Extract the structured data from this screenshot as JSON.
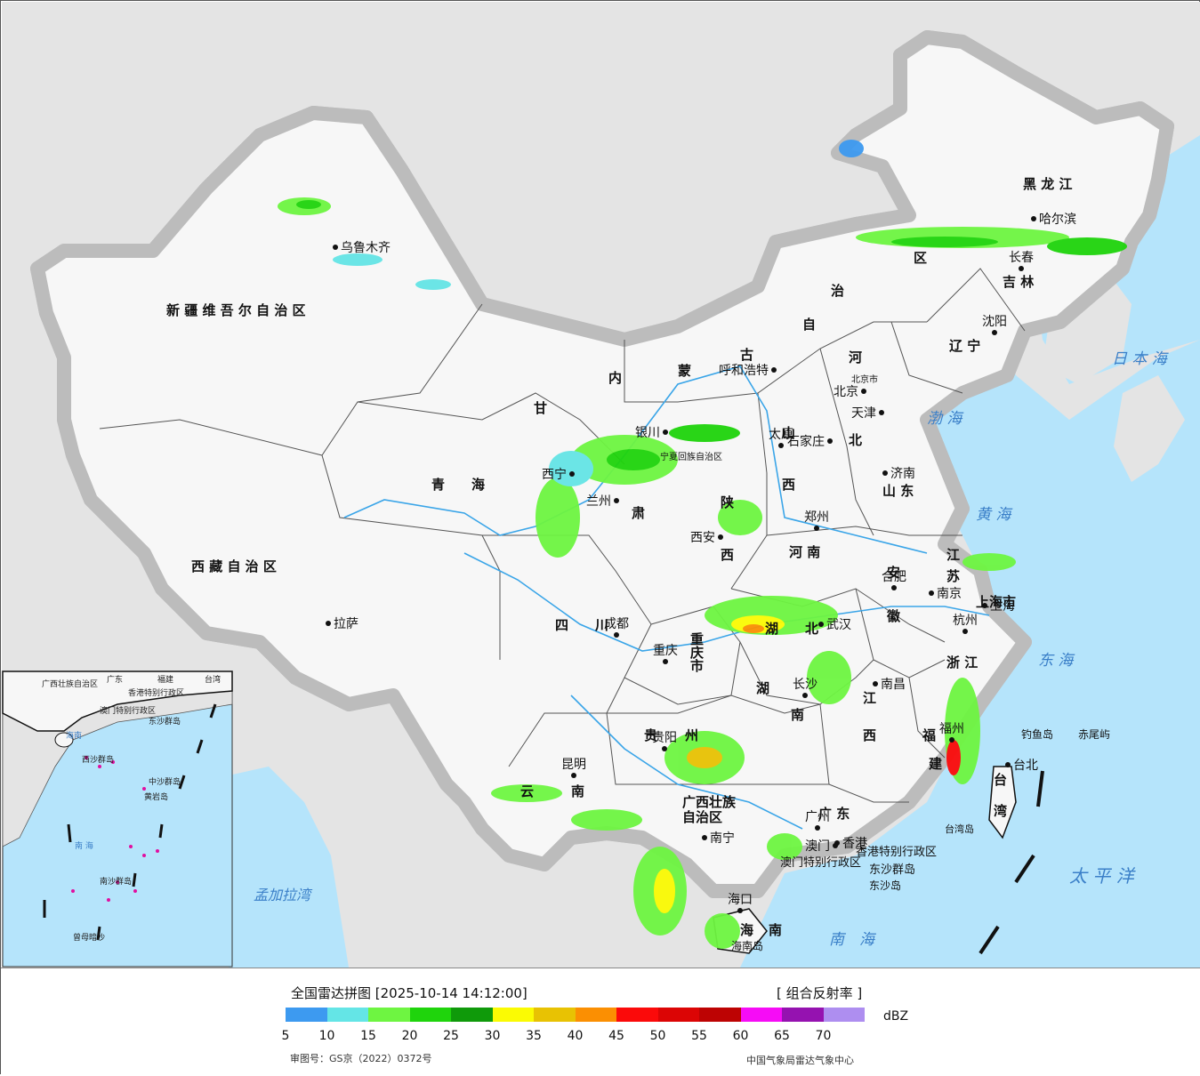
{
  "legend": {
    "title": "全国雷达拼图 [2025-10-14 14:12:00]",
    "product": "[ 组合反射率 ]",
    "unit": "dBZ",
    "colors": [
      "#3d9af0",
      "#64e5e6",
      "#6ef541",
      "#1fd40c",
      "#0f9a0a",
      "#fbfb03",
      "#e8c203",
      "#fb8f02",
      "#fb0a0a",
      "#dc0505",
      "#bd0303",
      "#f60cf6",
      "#9512b0",
      "#ae8ef0"
    ],
    "labels": [
      "5",
      "10",
      "15",
      "20",
      "25",
      "30",
      "35",
      "40",
      "45",
      "50",
      "55",
      "60",
      "65",
      "70"
    ],
    "approval": "审图号：GS京（2022）0372号",
    "organization": "中国气象局雷达气象中心"
  },
  "regions": [
    "新 疆 维 吾 尔 自 治 区",
    "西 藏 自 治 区",
    "青　　海",
    "甘",
    "肃",
    "内",
    "蒙",
    "古",
    "自",
    "治",
    "区",
    "黑 龙 江",
    "吉 林",
    "辽 宁",
    "河",
    "北",
    "山",
    "西",
    "山 东",
    "河 南",
    "陕",
    "西",
    "四　　川",
    "重",
    "庆",
    "市",
    "湖",
    "北",
    "湖",
    "南",
    "江",
    "西",
    "安",
    "徽",
    "江",
    "苏",
    "浙 江",
    "福",
    "建",
    "广 东",
    "广西壮族",
    "自治区",
    "贵",
    "州",
    "云",
    "南",
    "海",
    "南",
    "台",
    "湾",
    "上海市"
  ],
  "cities": [
    "乌鲁木齐",
    "拉萨",
    "西宁",
    "兰州",
    "银川",
    "呼和浩特",
    "北京",
    "天津",
    "石家庄",
    "太原",
    "济南",
    "郑州",
    "西安",
    "成都",
    "重庆",
    "武汉",
    "合肥",
    "南京",
    "上海",
    "杭州",
    "南昌",
    "长沙",
    "贵阳",
    "昆明",
    "南宁",
    "广州",
    "香港",
    "澳门",
    "福州",
    "台北",
    "哈尔滨",
    "长春",
    "沈阳",
    "海口"
  ],
  "map_extra_labels": [
    "北京市",
    "宁夏回族自治区",
    "香港特别行政区",
    "澳门特别行政区",
    "东沙群岛",
    "东沙岛",
    "海南岛",
    "台湾岛",
    "钓鱼岛",
    "赤尾屿"
  ],
  "seas": [
    "日 本 海",
    "渤 海",
    "黄 海",
    "东 海",
    "太 平 洋",
    "南　海",
    "孟加拉湾"
  ],
  "inset": {
    "labels": [
      "广西壮族自治区",
      "广东",
      "福建",
      "台湾",
      "香港特别行政区",
      "澳门特别行政区",
      "东沙群岛",
      "海南",
      "西沙群岛",
      "中沙群岛",
      "黄岩岛",
      "南 海",
      "南沙群岛",
      "曾母暗沙"
    ]
  }
}
